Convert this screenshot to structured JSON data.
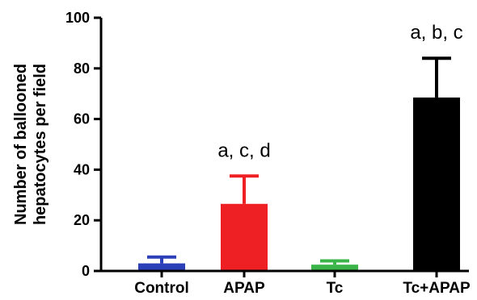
{
  "chart_data": {
    "type": "bar",
    "title": "",
    "xlabel": "",
    "ylabel": [
      "Number of ballooned",
      "hepatocytes per field"
    ],
    "ylim": [
      0,
      100
    ],
    "yticks": [
      0,
      20,
      40,
      60,
      80,
      100
    ],
    "grid": false,
    "categories": [
      "Control",
      "APAP",
      "Tc",
      "Tc+APAP"
    ],
    "values": [
      3,
      26.5,
      2.5,
      68.5
    ],
    "errors": [
      2.5,
      11,
      1.5,
      15.5
    ],
    "colors": [
      "#2b3fb8",
      "#ee2024",
      "#3bb54a",
      "#000000"
    ],
    "annotations": [
      "",
      "a, c, d",
      "",
      "a, b, c"
    ]
  }
}
